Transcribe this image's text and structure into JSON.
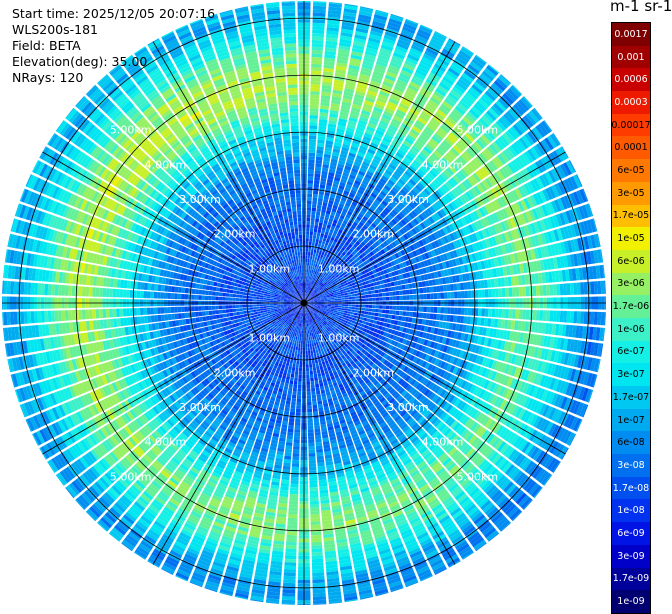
{
  "info": {
    "start_time": "Start time: 2025/12/05 20:07:16",
    "instrument": "WLS200s-181",
    "field": "Field: BETA",
    "elevation": "Elevation(deg): 35.00",
    "nrays": "NRays: 120"
  },
  "colorbar": {
    "unit_title": "m-1 sr-1",
    "levels": [
      {
        "label": "0.0017",
        "color": "#7f0000"
      },
      {
        "label": "0.001",
        "color": "#a00000"
      },
      {
        "label": "0.0006",
        "color": "#c80000"
      },
      {
        "label": "0.0003",
        "color": "#ee1a00"
      },
      {
        "label": "0.00017",
        "color": "#ff3c00"
      },
      {
        "label": "0.0001",
        "color": "#ff5a00"
      },
      {
        "label": "6e-05",
        "color": "#ff7800"
      },
      {
        "label": "3e-05",
        "color": "#ff9a00"
      },
      {
        "label": "1.7e-05",
        "color": "#ffbe00"
      },
      {
        "label": "1e-05",
        "color": "#f0f000"
      },
      {
        "label": "6e-06",
        "color": "#c8f028"
      },
      {
        "label": "3e-06",
        "color": "#96f064"
      },
      {
        "label": "1.7e-06",
        "color": "#64f096"
      },
      {
        "label": "1e-06",
        "color": "#3cf0c8"
      },
      {
        "label": "6e-07",
        "color": "#14f0e6"
      },
      {
        "label": "3e-07",
        "color": "#00e6f0"
      },
      {
        "label": "1.7e-07",
        "color": "#00c8f0"
      },
      {
        "label": "1e-07",
        "color": "#00aaf0"
      },
      {
        "label": "6e-08",
        "color": "#008cf0"
      },
      {
        "label": "3e-08",
        "color": "#0070f0"
      },
      {
        "label": "1.7e-08",
        "color": "#0050f0"
      },
      {
        "label": "1e-08",
        "color": "#0032f0"
      },
      {
        "label": "6e-09",
        "color": "#0014e6"
      },
      {
        "label": "3e-09",
        "color": "#0000c8"
      },
      {
        "label": "1.7e-09",
        "color": "#00009a"
      },
      {
        "label": "1e-09",
        "color": "#000070"
      }
    ]
  },
  "chart_data": {
    "type": "heatmap",
    "projection": "polar",
    "field": "BETA",
    "elevation_deg": 35.0,
    "nrays": 120,
    "range_rings_km": [
      1,
      2,
      3,
      4,
      5
    ],
    "ring_labels": [
      "1.00km",
      "2.00km",
      "3.00km",
      "4.00km",
      "5.00km"
    ],
    "max_range_km": 5.3,
    "spokes_deg": [
      0,
      30,
      60,
      90,
      120,
      150,
      180,
      210,
      240,
      270,
      300,
      330
    ],
    "range_profile": {
      "range_km": [
        0.0,
        0.3,
        0.6,
        1.0,
        1.4,
        1.8,
        2.2,
        2.6,
        3.0,
        3.3,
        3.6,
        3.9,
        4.2,
        4.5,
        4.8,
        5.1,
        5.3
      ],
      "beta": [
        1e-08,
        1e-08,
        1.7e-08,
        1.7e-08,
        1.7e-08,
        3e-08,
        3e-08,
        6e-08,
        1.7e-07,
        6e-07,
        1.7e-06,
        3e-06,
        1.7e-06,
        6e-07,
        1.7e-07,
        6e-08,
        1e-07
      ]
    },
    "azimuth_bias": {
      "azimuth_deg": [
        0,
        30,
        60,
        90,
        120,
        150,
        180,
        210,
        240,
        270,
        300,
        330
      ],
      "factor": [
        1.6,
        1.4,
        1.0,
        0.6,
        0.5,
        0.7,
        0.9,
        0.8,
        1.1,
        1.5,
        1.7,
        1.8
      ]
    }
  }
}
